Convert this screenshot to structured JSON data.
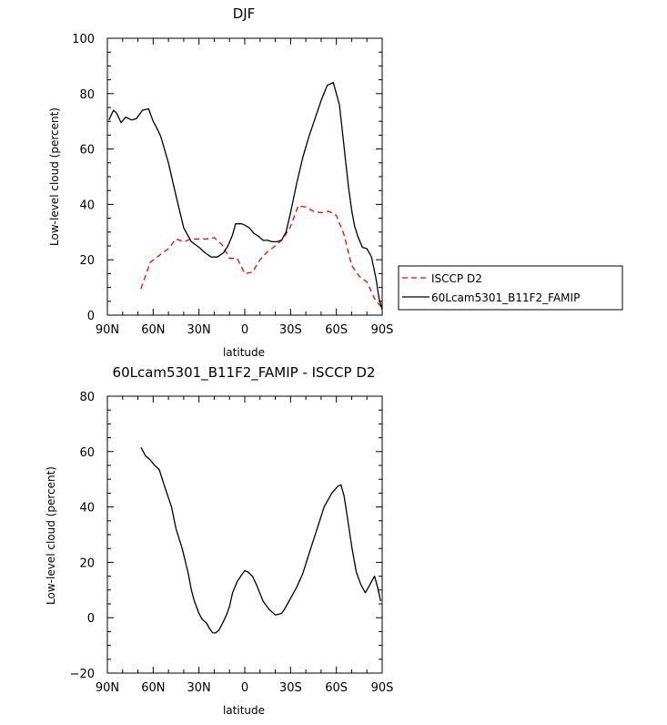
{
  "chart_data": [
    {
      "type": "line",
      "title": "DJF",
      "xlabel": "latitude",
      "ylabel": "Low-level cloud (percent)",
      "xlim": [
        90,
        -90
      ],
      "ylim": [
        0,
        100
      ],
      "x_ticks": [
        90,
        60,
        30,
        0,
        -30,
        -60,
        -90
      ],
      "x_tick_labels": [
        "90N",
        "60N",
        "30N",
        "0",
        "30S",
        "60S",
        "90S"
      ],
      "y_ticks": [
        0,
        20,
        40,
        60,
        80,
        100
      ],
      "y_tick_labels": [
        "0",
        "20",
        "40",
        "60",
        "80",
        "100"
      ],
      "legend_position": "right",
      "series": [
        {
          "name": "ISCCP D2",
          "color": "#ff0000",
          "dash": "dashed",
          "x": [
            68,
            62,
            55,
            50,
            45,
            40,
            35,
            30,
            25,
            20,
            15,
            10,
            5,
            0,
            -5,
            -10,
            -15,
            -20,
            -25,
            -30,
            -35,
            -40,
            -45,
            -50,
            -55,
            -60,
            -65,
            -70,
            -75,
            -80,
            -85,
            -90
          ],
          "y": [
            9.5,
            19,
            22,
            24,
            27.5,
            26.5,
            27.5,
            27.5,
            27.5,
            28,
            25.5,
            20.5,
            20.5,
            15,
            15.5,
            20,
            23,
            25,
            27.5,
            32,
            39.5,
            39,
            37.5,
            37,
            37.5,
            36,
            29,
            18,
            14,
            12,
            6,
            2.5
          ]
        },
        {
          "name": "60Lcam5301_B11F2_FAMIP",
          "color": "#000000",
          "dash": "solid",
          "x": [
            89,
            86,
            84,
            81,
            78,
            74,
            71,
            67,
            63,
            60,
            58,
            55,
            50,
            45,
            40,
            35,
            30,
            26,
            22,
            18,
            14,
            11,
            8,
            6,
            4,
            2,
            0,
            -3,
            -6,
            -9,
            -12,
            -15,
            -18,
            -21,
            -24,
            -27,
            -30,
            -34,
            -38,
            -42,
            -46,
            -50,
            -54,
            -58,
            -62,
            -64,
            -66,
            -68,
            -70,
            -72,
            -74,
            -77,
            -80,
            -83,
            -86,
            -88,
            -90
          ],
          "y": [
            70.5,
            74,
            73,
            69.5,
            71.5,
            70.5,
            71,
            74,
            74.5,
            70,
            68,
            64.5,
            55,
            43,
            31.5,
            26.5,
            24.5,
            22.5,
            21,
            21,
            22.5,
            25,
            29,
            33,
            33,
            33,
            32.5,
            31.5,
            29.5,
            28.5,
            27,
            27,
            26.5,
            26.5,
            27,
            30,
            37,
            47.5,
            57,
            64.5,
            71,
            77.5,
            83,
            84,
            76,
            66,
            56,
            46,
            38,
            32,
            28.5,
            24.5,
            24,
            21,
            13,
            6,
            2
          ]
        }
      ]
    },
    {
      "type": "line",
      "title": "60Lcam5301_B11F2_FAMIP - ISCCP D2",
      "xlabel": "latitude",
      "ylabel": "Low-level cloud (percent)",
      "xlim": [
        90,
        -90
      ],
      "ylim": [
        -20,
        80
      ],
      "x_ticks": [
        90,
        60,
        30,
        0,
        -30,
        -60,
        -90
      ],
      "x_tick_labels": [
        "90N",
        "60N",
        "30N",
        "0",
        "30S",
        "60S",
        "90S"
      ],
      "y_ticks": [
        -20,
        0,
        20,
        40,
        60,
        80
      ],
      "y_tick_labels": [
        "−20",
        "0",
        "20",
        "40",
        "60",
        "80"
      ],
      "series": [
        {
          "name": "60Lcam5301_B11F2_FAMIP - ISCCP D2",
          "color": "#000000",
          "dash": "solid",
          "x": [
            68,
            65,
            62,
            59,
            56,
            52,
            48,
            45,
            41,
            37,
            35,
            33,
            30,
            28,
            25,
            23,
            21,
            19,
            17,
            15,
            12,
            10,
            8,
            5,
            2,
            0,
            -2,
            -5,
            -8,
            -12,
            -16,
            -20,
            -24,
            -26,
            -28,
            -30,
            -34,
            -38,
            -42,
            -47,
            -52,
            -57,
            -61,
            -63,
            -65,
            -67,
            -70,
            -73,
            -76,
            -79,
            -82,
            -85,
            -87,
            -89
          ],
          "y": [
            61.5,
            58.5,
            57,
            55,
            53.5,
            46.5,
            40,
            32,
            25,
            16,
            10,
            6,
            1.5,
            -0.5,
            -2,
            -4,
            -5.5,
            -5.5,
            -4.5,
            -2.5,
            1,
            4,
            9,
            13,
            15.5,
            17,
            16.5,
            15,
            11.5,
            6,
            3,
            1,
            1.5,
            3,
            5,
            7,
            11,
            16,
            23,
            31.5,
            40,
            45,
            47.5,
            48,
            44,
            37,
            26,
            16.5,
            12,
            9,
            12,
            15,
            11,
            6
          ]
        }
      ]
    }
  ]
}
